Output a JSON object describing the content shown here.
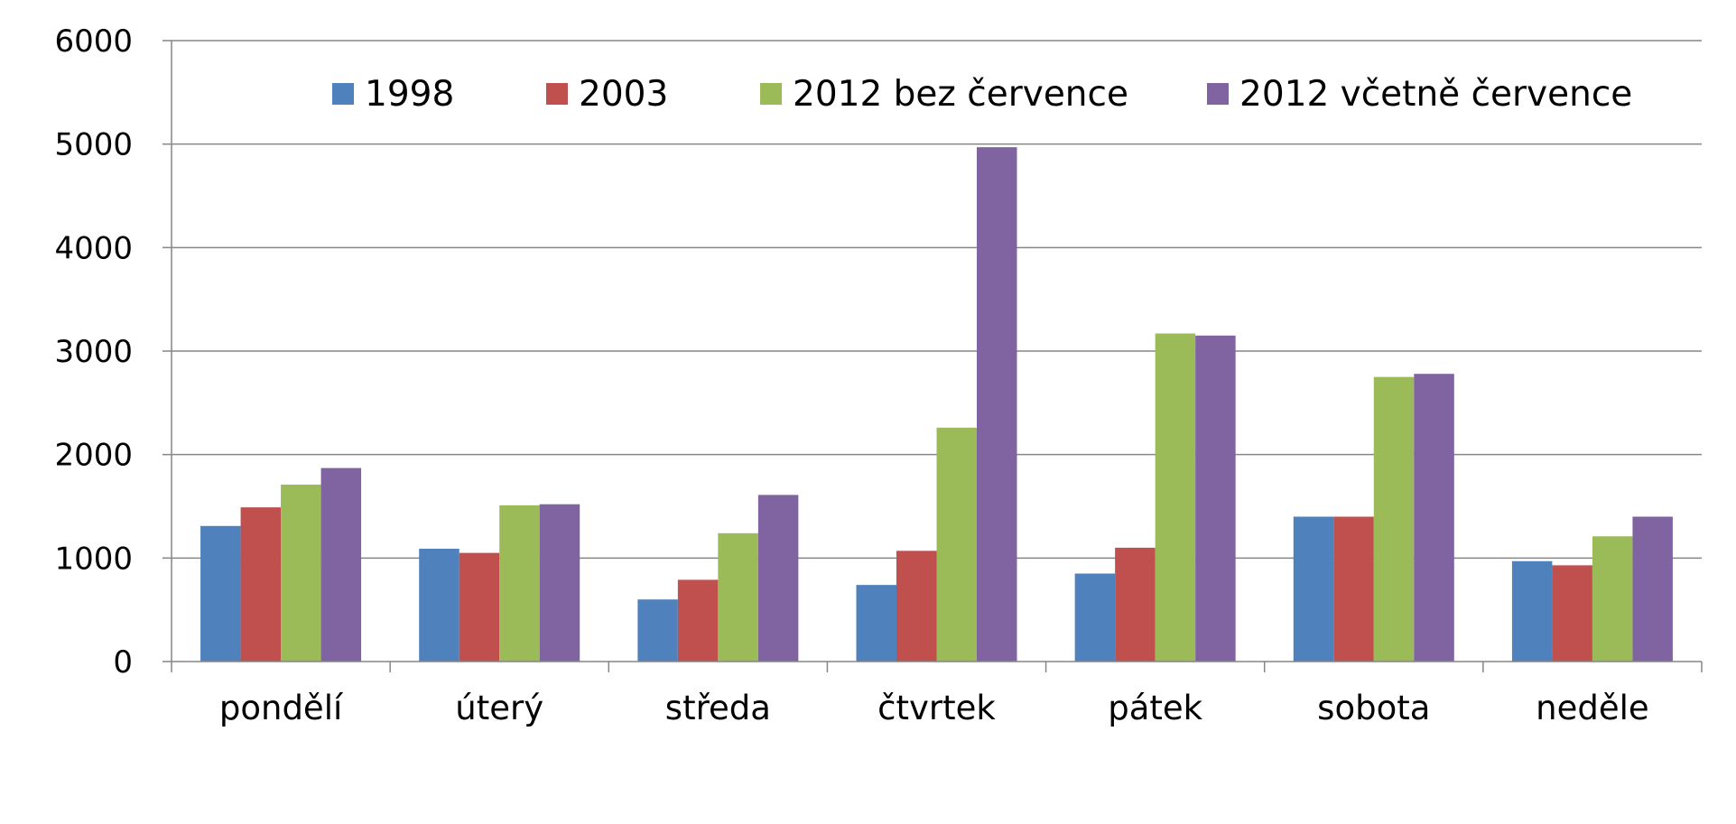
{
  "chart_data": {
    "type": "bar",
    "categories": [
      "pondělí",
      "úterý",
      "středa",
      "čtvrtek",
      "pátek",
      "sobota",
      "neděle"
    ],
    "series": [
      {
        "name": "1998",
        "color": "#4F81BD",
        "values": [
          1310,
          1090,
          600,
          740,
          850,
          1400,
          970
        ]
      },
      {
        "name": "2003",
        "color": "#C0504D",
        "values": [
          1490,
          1050,
          790,
          1070,
          1100,
          1400,
          930
        ]
      },
      {
        "name": "2012 bez července",
        "color": "#9BBB59",
        "values": [
          1710,
          1510,
          1240,
          2260,
          3170,
          2750,
          1210
        ]
      },
      {
        "name": "2012 včetně července",
        "color": "#8064A2",
        "values": [
          1870,
          1520,
          1610,
          4970,
          3150,
          2780,
          1400
        ]
      }
    ],
    "ylim": [
      0,
      6000
    ],
    "yticks": [
      "0",
      "1000",
      "2000",
      "3000",
      "4000",
      "5000",
      "6000"
    ],
    "grid": true,
    "legend_position": "top",
    "title": "",
    "xlabel": "",
    "ylabel": ""
  }
}
